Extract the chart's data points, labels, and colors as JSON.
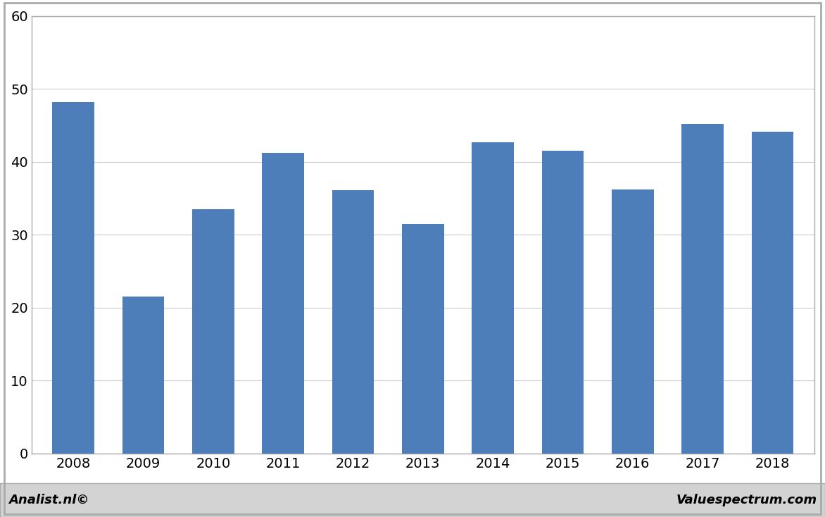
{
  "categories": [
    "2008",
    "2009",
    "2010",
    "2011",
    "2012",
    "2013",
    "2014",
    "2015",
    "2016",
    "2017",
    "2018"
  ],
  "values": [
    48.2,
    21.5,
    33.5,
    41.2,
    36.1,
    31.5,
    42.7,
    41.5,
    36.2,
    45.2,
    44.1
  ],
  "bar_color": "#4d7eba",
  "ylim": [
    0,
    60
  ],
  "yticks": [
    0,
    10,
    20,
    30,
    40,
    50,
    60
  ],
  "background_color": "#ffffff",
  "plot_background": "#ffffff",
  "grid_color": "#cccccc",
  "footer_left": "Analist.nl©",
  "footer_right": "Valuespectrum.com",
  "border_color": "#aaaaaa",
  "footer_bg": "#d3d3d3",
  "tick_label_fontsize": 14,
  "footer_fontsize": 13
}
